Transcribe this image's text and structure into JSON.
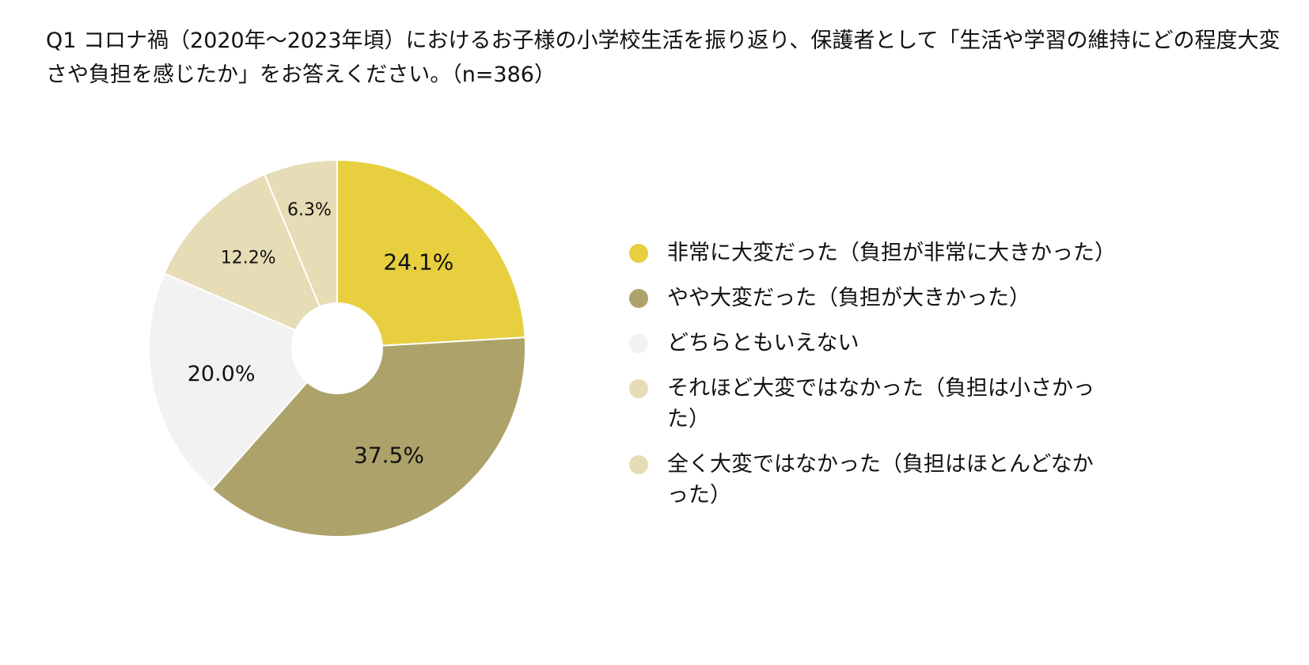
{
  "question": {
    "text": "Q1 コロナ禍（2020年～2023年頃）におけるお子様の小学校生活を振り返り、保護者として「生活や学習の維持にどの程度大変さや負担を感じたか」をお答えください。（n=386）"
  },
  "chart_data": {
    "type": "pie",
    "title": "Q1 コロナ禍（2020年～2023年頃）におけるお子様の小学校生活を振り返り、保護者として「生活や学習の維持にどの程度大変さや負担を感じたか」をお答えください。（n=386）",
    "n": 386,
    "style": "donut",
    "start_angle_deg": 0,
    "direction": "clockwise",
    "legend_position": "right",
    "slices": [
      {
        "label": "非常に大変だった（負担が非常に大きかった）",
        "value": 24.1,
        "display": "24.1%",
        "color": "#E7CF3F"
      },
      {
        "label": "やや大変だった（負担が大きかった）",
        "value": 37.5,
        "display": "37.5%",
        "color": "#ADA26A"
      },
      {
        "label": "どちらともいえない",
        "value": 20.0,
        "display": "20.0%",
        "color": "#F2F2F2"
      },
      {
        "label": "それほど大変ではなかった（負担は小さかった）",
        "value": 12.2,
        "display": "12.2%",
        "color": "#E6DCB5"
      },
      {
        "label": "全く大変ではなかった（負担はほとんどなかった）",
        "value": 6.3,
        "display": "6.3%",
        "color": "#E6DCB5"
      }
    ]
  }
}
